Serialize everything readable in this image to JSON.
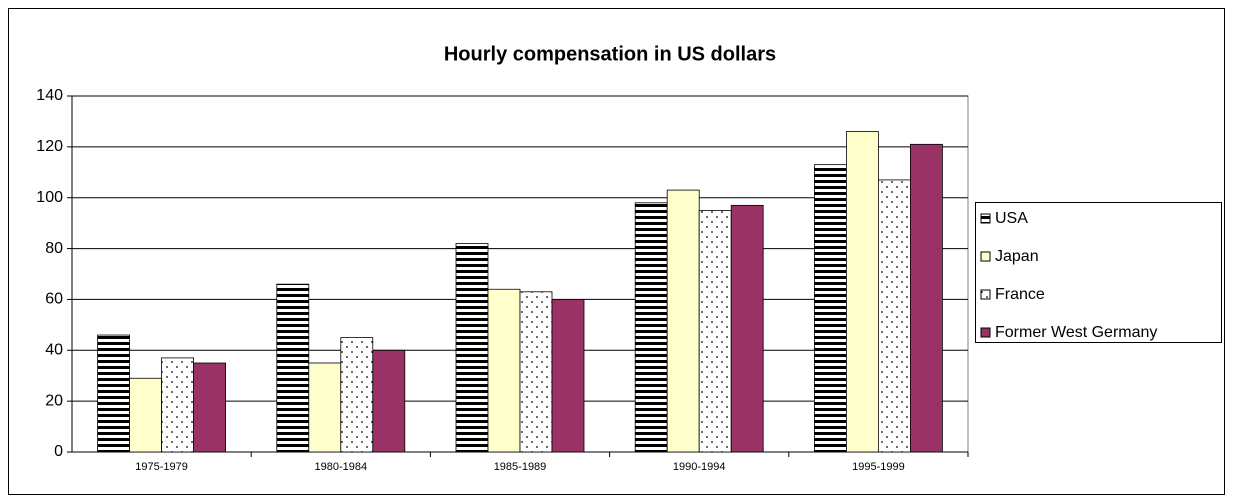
{
  "chart_data": {
    "type": "bar",
    "title": "Hourly compensation in US dollars",
    "categories": [
      "1975-1979",
      "1980-1984",
      "1985-1989",
      "1990-1994",
      "1995-1999"
    ],
    "series": [
      {
        "name": "USA",
        "color": "#000000",
        "pattern": "hstripes",
        "values": [
          46,
          66,
          82,
          98,
          113
        ]
      },
      {
        "name": "Japan",
        "color": "#ffffcc",
        "pattern": "none",
        "values": [
          29,
          35,
          64,
          103,
          126
        ]
      },
      {
        "name": "France",
        "color": "#000000",
        "pattern": "dots",
        "values": [
          37,
          45,
          63,
          95,
          107
        ]
      },
      {
        "name": "Former West Germany",
        "color": "#993366",
        "pattern": "none",
        "values": [
          35,
          40,
          60,
          97,
          121
        ]
      }
    ],
    "ylim": [
      0,
      140
    ],
    "yticks": [
      0,
      20,
      40,
      60,
      80,
      100,
      120,
      140
    ],
    "grid": true,
    "legend": "right"
  }
}
